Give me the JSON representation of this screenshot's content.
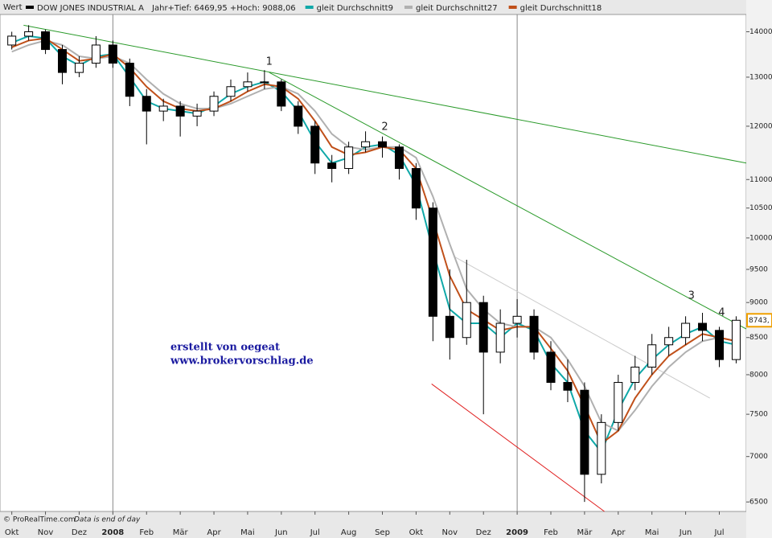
{
  "chart_data": {
    "type": "candlestick",
    "value_axis_label": "Wert",
    "name": "DOW JONES INDUSTRIAL A",
    "info": "Jahr+Tief: 6469,95 +Hoch: 9088,06",
    "color": "#000000",
    "log_scale": true,
    "xlim": [
      -0.35,
      21.8
    ],
    "ylim": [
      6400,
      14400
    ],
    "xticks": [
      {
        "value": 0,
        "label": "Okt"
      },
      {
        "value": 1,
        "label": "Nov"
      },
      {
        "value": 2,
        "label": "Dez"
      },
      {
        "value": 3,
        "label": "2008"
      },
      {
        "value": 4,
        "label": "Feb"
      },
      {
        "value": 5,
        "label": "Mär"
      },
      {
        "value": 6,
        "label": "Apr"
      },
      {
        "value": 7,
        "label": "Mai"
      },
      {
        "value": 8,
        "label": "Jun"
      },
      {
        "value": 9,
        "label": "Jul"
      },
      {
        "value": 10,
        "label": "Aug"
      },
      {
        "value": 11,
        "label": "Sep"
      },
      {
        "value": 12,
        "label": "Okt"
      },
      {
        "value": 13,
        "label": "Nov"
      },
      {
        "value": 14,
        "label": "Dez"
      },
      {
        "value": 15,
        "label": "2009"
      },
      {
        "value": 16,
        "label": "Feb"
      },
      {
        "value": 17,
        "label": "Mär"
      },
      {
        "value": 18,
        "label": "Apr"
      },
      {
        "value": 19,
        "label": "Mai"
      },
      {
        "value": 20,
        "label": "Jun"
      },
      {
        "value": 21,
        "label": "Jul"
      }
    ],
    "yticks": [
      6500,
      7000,
      7500,
      8000,
      8500,
      9000,
      9500,
      10000,
      10500,
      11000,
      12000,
      13000,
      14000
    ],
    "x": [
      0,
      0.5,
      1,
      1.5,
      2,
      2.5,
      3,
      3.5,
      4,
      4.5,
      5,
      5.5,
      6,
      6.5,
      7,
      7.5,
      8,
      8.5,
      9,
      9.5,
      10,
      10.5,
      11,
      11.5,
      12,
      12.5,
      13,
      13.5,
      14,
      14.5,
      15,
      15.5,
      16,
      16.5,
      17,
      17.5,
      18,
      18.5,
      19,
      19.5,
      20,
      20.5,
      21,
      21.5
    ],
    "open": [
      13700,
      13900,
      14000,
      13600,
      13100,
      13300,
      13700,
      13300,
      12600,
      12300,
      12400,
      12200,
      12300,
      12600,
      12800,
      12900,
      12900,
      12400,
      12000,
      11300,
      11200,
      11600,
      11700,
      11600,
      11200,
      10500,
      8800,
      8500,
      9000,
      8300,
      8700,
      8800,
      8300,
      7900,
      7800,
      6800,
      7400,
      7900,
      8100,
      8400,
      8500,
      8700,
      8600,
      8200
    ],
    "high": [
      14000,
      14150,
      14050,
      13700,
      13450,
      13900,
      13800,
      13400,
      12750,
      12550,
      12500,
      12450,
      12700,
      12950,
      13100,
      13150,
      12950,
      12500,
      12100,
      11450,
      11700,
      11900,
      11800,
      11650,
      11300,
      10600,
      9500,
      9650,
      9100,
      8900,
      9050,
      8900,
      8450,
      8200,
      7900,
      7500,
      8000,
      8250,
      8550,
      8650,
      8800,
      8850,
      8650,
      8800
    ],
    "low": [
      13600,
      13800,
      13500,
      12850,
      13000,
      13200,
      13200,
      12400,
      11650,
      12100,
      11800,
      12000,
      12200,
      12500,
      12700,
      12750,
      12300,
      11850,
      11100,
      10950,
      11100,
      11500,
      11400,
      11000,
      10300,
      8450,
      8200,
      8400,
      7500,
      8150,
      8500,
      8200,
      7800,
      7650,
      6500,
      6700,
      7300,
      7800,
      8000,
      8250,
      8400,
      8450,
      8100,
      8150
    ],
    "close": [
      13900,
      14000,
      13600,
      13100,
      13300,
      13700,
      13300,
      12600,
      12300,
      12400,
      12200,
      12300,
      12600,
      12800,
      12900,
      12900,
      12400,
      12000,
      11300,
      11200,
      11600,
      11700,
      11600,
      11200,
      10500,
      8800,
      8500,
      9000,
      8300,
      8700,
      8800,
      8300,
      7900,
      7800,
      6800,
      7400,
      7900,
      8100,
      8400,
      8500,
      8700,
      8600,
      8200,
      8743
    ],
    "last_close_label": "8743,",
    "series": [
      {
        "name": "gleit Durchschnitt9",
        "color": "#10a8a8",
        "values": [
          13750,
          13900,
          13850,
          13450,
          13250,
          13450,
          13500,
          13000,
          12500,
          12350,
          12300,
          12250,
          12400,
          12650,
          12800,
          12900,
          12700,
          12300,
          11700,
          11300,
          11400,
          11600,
          11650,
          11450,
          10900,
          9800,
          8900,
          8700,
          8700,
          8500,
          8700,
          8600,
          8150,
          7900,
          7300,
          7050,
          7550,
          7950,
          8200,
          8400,
          8550,
          8650,
          8450,
          8400
        ]
      },
      {
        "name": "gleit Durchschnitt27",
        "color": "#b0b0b0",
        "values": [
          13550,
          13700,
          13800,
          13700,
          13450,
          13400,
          13450,
          13300,
          12950,
          12650,
          12450,
          12350,
          12350,
          12450,
          12600,
          12750,
          12800,
          12650,
          12300,
          11850,
          11600,
          11550,
          11600,
          11600,
          11400,
          10700,
          9900,
          9200,
          8900,
          8700,
          8650,
          8650,
          8500,
          8200,
          7850,
          7400,
          7300,
          7550,
          7850,
          8100,
          8300,
          8450,
          8500,
          8450
        ]
      },
      {
        "name": "gleit Durchschnitt18",
        "color": "#c0501a",
        "values": [
          13650,
          13800,
          13850,
          13600,
          13350,
          13400,
          13500,
          13200,
          12800,
          12500,
          12350,
          12300,
          12350,
          12500,
          12700,
          12850,
          12800,
          12550,
          12100,
          11600,
          11450,
          11500,
          11600,
          11550,
          11200,
          10300,
          9400,
          8900,
          8750,
          8600,
          8650,
          8650,
          8350,
          8050,
          7600,
          7150,
          7300,
          7700,
          8000,
          8250,
          8400,
          8550,
          8500,
          8450
        ]
      }
    ],
    "lines": [
      {
        "color": "#2a9a2a",
        "x": [
          0.35,
          21.8
        ],
        "y": [
          14150,
          11300
        ]
      },
      {
        "color": "#2a9a2a",
        "x": [
          7.64,
          21.8
        ],
        "y": [
          13100,
          8620
        ]
      },
      {
        "color": "#e02020",
        "x": [
          12.46,
          17.59
        ],
        "y": [
          7880,
          6400
        ]
      },
      {
        "color": "#cccccc",
        "x": [
          13.13,
          20.72
        ],
        "y": [
          9700,
          7700
        ]
      }
    ],
    "annotations": [
      {
        "text": "1",
        "x": 7.64,
        "y": 13330
      },
      {
        "text": "2",
        "x": 11.07,
        "y": 11980
      },
      {
        "text": "3",
        "x": 20.17,
        "y": 9100
      },
      {
        "text": "4",
        "x": 21.07,
        "y": 8850
      }
    ],
    "watermark": [
      "erstellt von oegeat",
      "www.brokervorschlag.de"
    ],
    "footer": [
      "© ProRealTime.com",
      "Data is end of day"
    ]
  }
}
